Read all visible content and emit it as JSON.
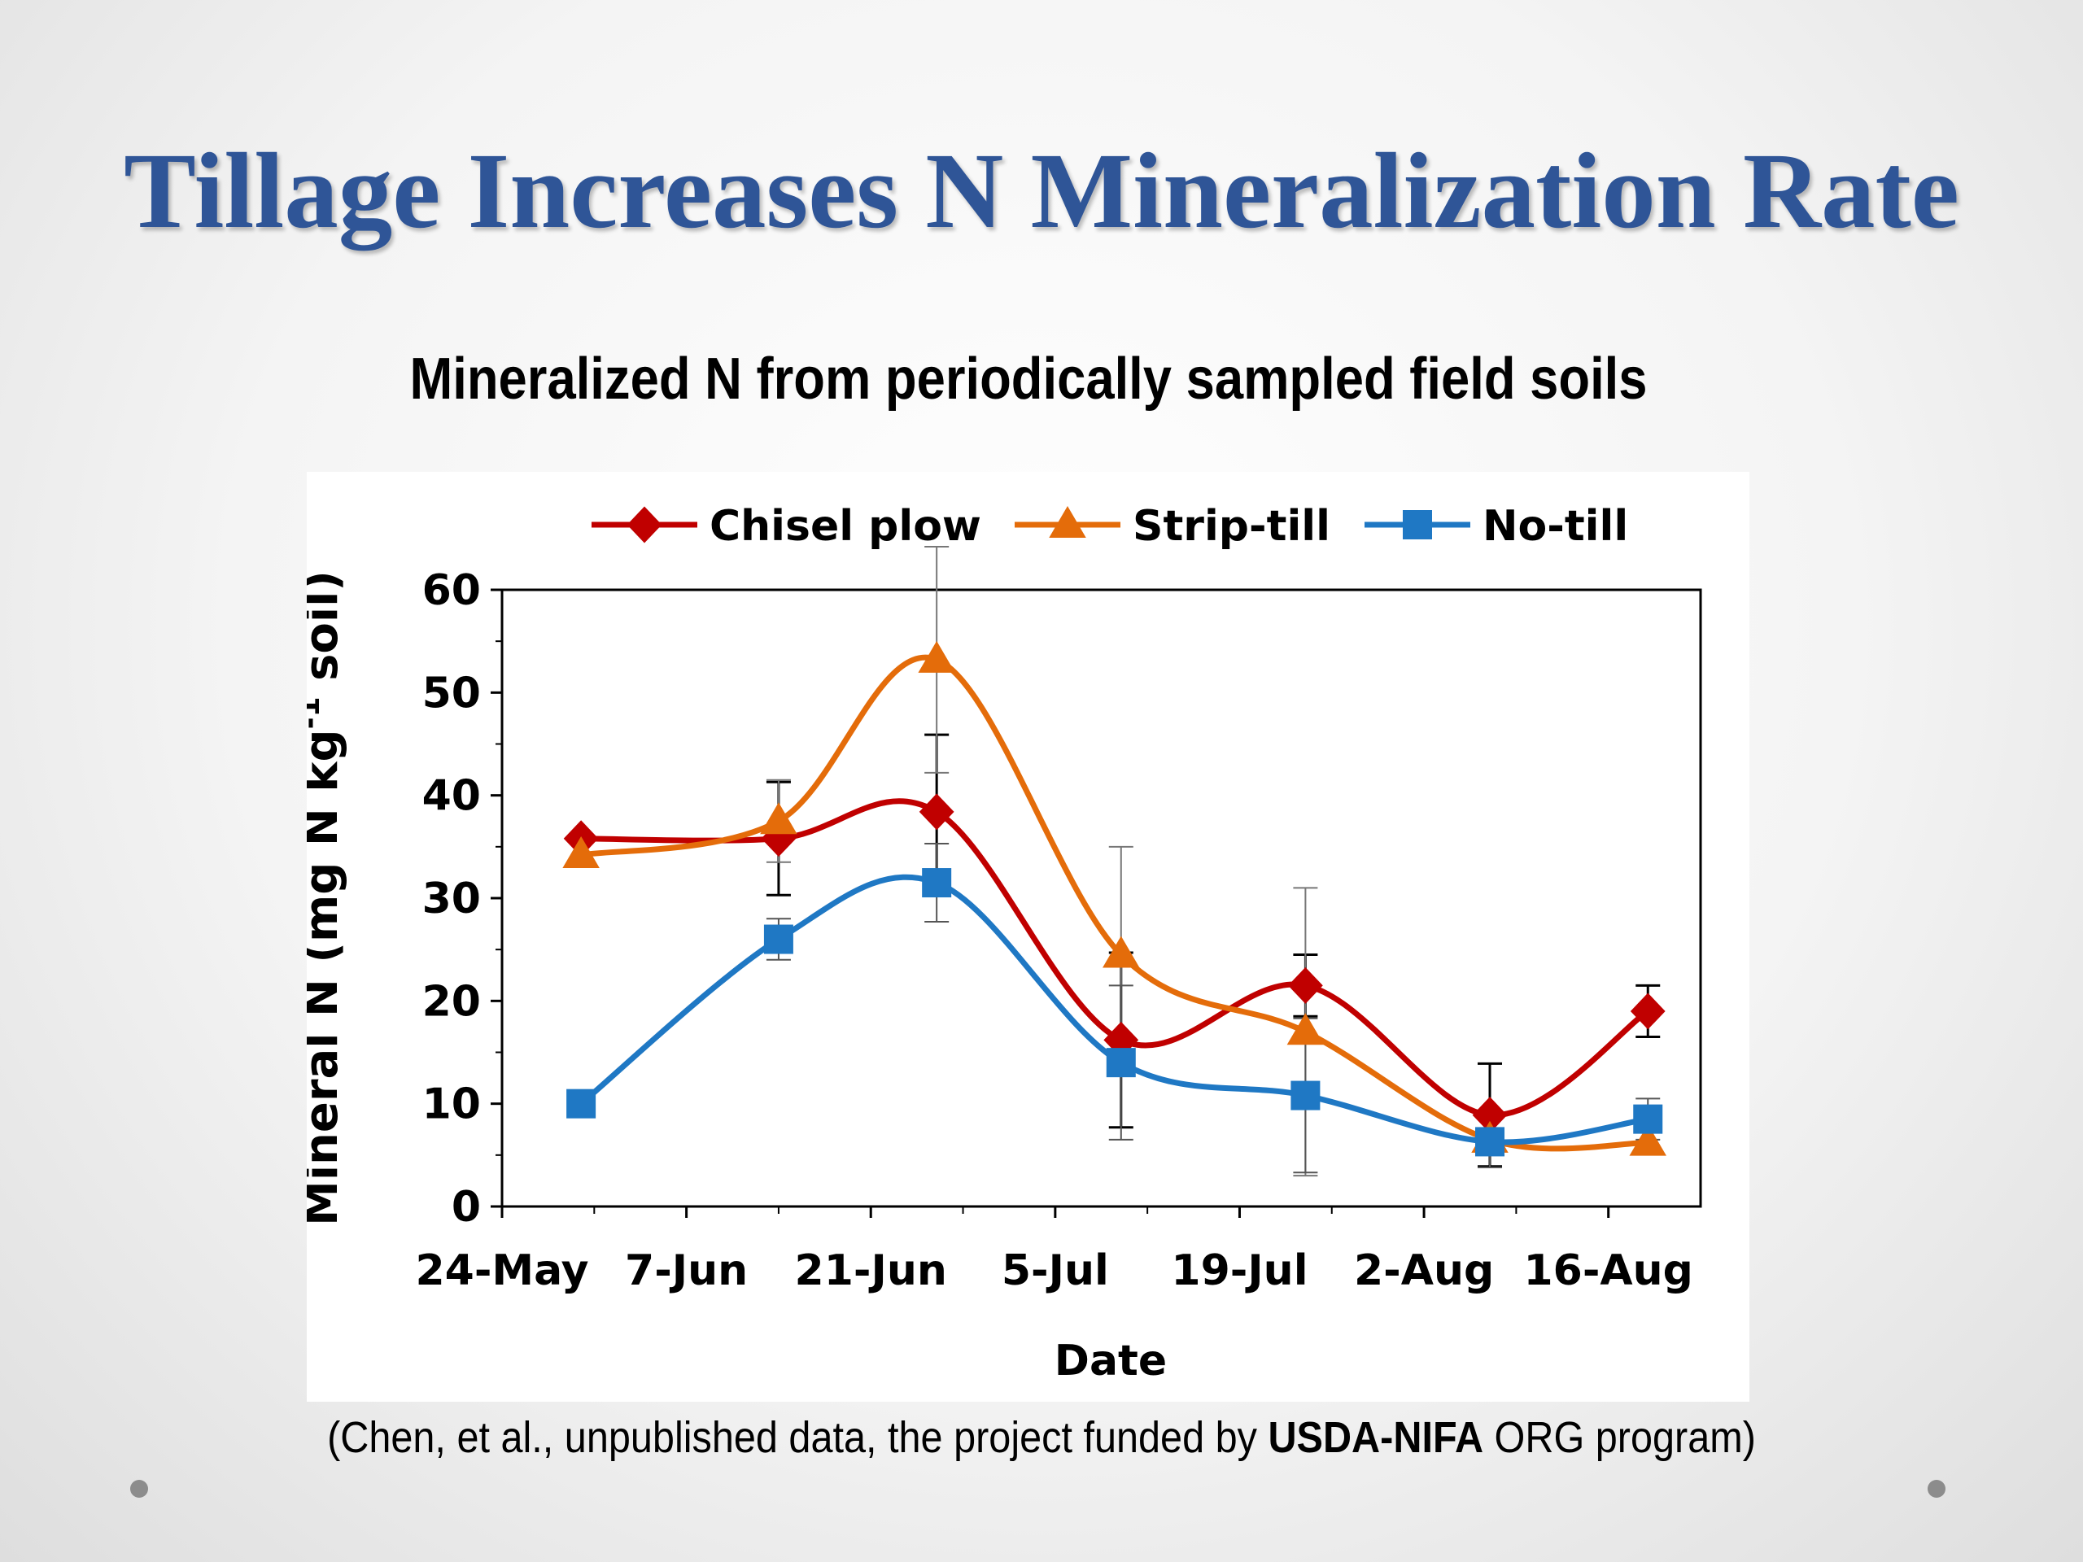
{
  "slide": {
    "title": "Tillage Increases N Mineralization Rate",
    "source_prefix": "(Chen, et al., unpublished data, the project funded by ",
    "source_bold": "USDA-NIFA",
    "source_suffix": " ORG program)",
    "colors": {
      "title": "#2f5597",
      "background": "#efefef"
    }
  },
  "chart_data": {
    "type": "line",
    "title": "Mineralized N from periodically sampled field soils",
    "xlabel": "Date",
    "ylabel_main": "Mineral N (mg N kg",
    "ylabel_sup": "-1",
    "ylabel_end": " soil)",
    "ylim": [
      0,
      60
    ],
    "yticks": [
      0,
      10,
      20,
      30,
      40,
      50,
      60
    ],
    "xlim": [
      "2015-05-24",
      "2015-08-23"
    ],
    "xtick_labels": [
      "24-May",
      "7-Jun",
      "21-Jun",
      "5-Jul",
      "19-Jul",
      "2-Aug",
      "16-Aug"
    ],
    "xtick_dates": [
      "2015-05-24",
      "2015-06-07",
      "2015-06-21",
      "2015-07-05",
      "2015-07-19",
      "2015-08-02",
      "2015-08-16"
    ],
    "grid": false,
    "smooth": true,
    "legend_position": "top",
    "x": [
      "2015-05-30",
      "2015-06-14",
      "2015-06-26",
      "2015-07-10",
      "2015-07-24",
      "2015-08-07",
      "2015-08-19"
    ],
    "series": [
      {
        "name": "Chisel plow",
        "marker": "diamond",
        "color": "#c00000",
        "values": [
          35.8,
          35.8,
          38.4,
          16.2,
          21.5,
          8.9,
          19.0
        ],
        "errors": [
          null,
          5.5,
          7.5,
          8.5,
          3.0,
          5.0,
          2.5
        ]
      },
      {
        "name": "Strip-till",
        "marker": "triangle",
        "color": "#e46c0a",
        "values": [
          34.2,
          37.5,
          53.2,
          24.5,
          17.0,
          6.5,
          6.2
        ],
        "errors": [
          null,
          4.0,
          11.0,
          10.5,
          14.0,
          null,
          null
        ]
      },
      {
        "name": "No-till",
        "marker": "square",
        "color": "#1f78c4",
        "values": [
          10.0,
          26.0,
          31.5,
          14.0,
          10.8,
          6.3,
          8.5
        ],
        "errors": [
          null,
          2.0,
          3.8,
          7.5,
          7.5,
          2.5,
          2.0
        ]
      }
    ]
  }
}
